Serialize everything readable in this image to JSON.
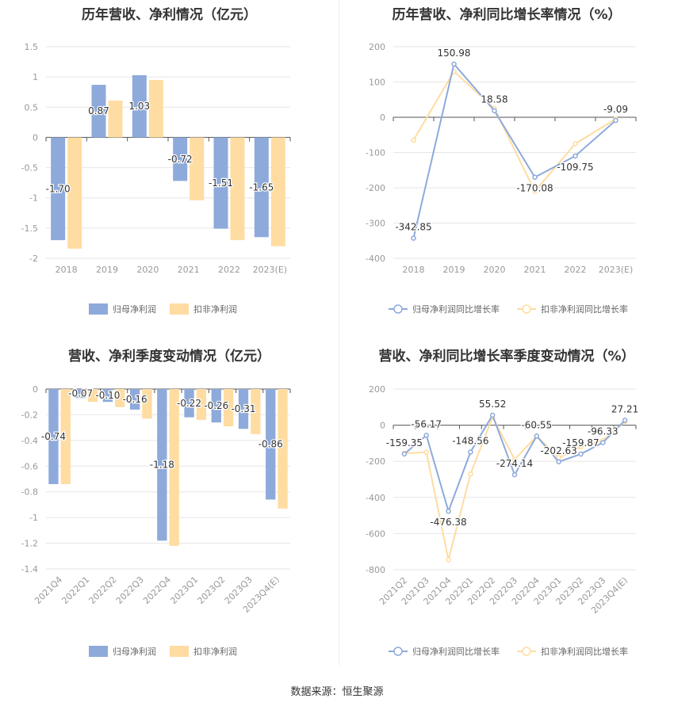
{
  "source": "数据来源：恒生聚源",
  "colors": {
    "series1": "#8eaadb",
    "series2": "#ffdca1",
    "grid": "#e6e6e6",
    "axis": "#888888",
    "text": "#999999"
  },
  "chart_data": [
    {
      "type": "bar",
      "title": "历年营收、净利情况（亿元）",
      "categories": [
        "2018",
        "2019",
        "2020",
        "2021",
        "2022",
        "2023(E)"
      ],
      "series": [
        {
          "name": "归母净利润",
          "values": [
            -1.7,
            0.87,
            1.03,
            -0.72,
            -1.51,
            -1.65
          ],
          "labels": [
            "-1.70",
            "0.87",
            "1.03",
            "-0.72",
            "-1.51",
            "-1.65"
          ]
        },
        {
          "name": "扣非净利润",
          "values": [
            -1.84,
            0.61,
            0.95,
            -1.04,
            -1.7,
            -1.8
          ]
        }
      ],
      "ylim": [
        -2,
        1.5
      ],
      "yticks": [
        1.5,
        1,
        0.5,
        0,
        -0.5,
        -1,
        -1.5,
        -2
      ],
      "ytick_labels": [
        "1.5",
        "1",
        "0.5",
        "0",
        "-0.5",
        "-1",
        "-1.5",
        "-2"
      ],
      "legend": "bottom-center"
    },
    {
      "type": "line",
      "title": "历年营收、净利同比增长率情况（%）",
      "categories": [
        "2018",
        "2019",
        "2020",
        "2021",
        "2022",
        "2023(E)"
      ],
      "series": [
        {
          "name": "归母净利润同比增长率",
          "values": [
            -342.85,
            150.98,
            18.58,
            -170.08,
            -109.75,
            -9.09
          ],
          "labels": [
            "-342.85",
            "150.98",
            "18.58",
            "-170.08",
            "-109.75",
            "-9.09"
          ]
        },
        {
          "name": "扣非净利润同比增长率",
          "values": [
            -65,
            130,
            25,
            -210,
            -75,
            -5
          ]
        }
      ],
      "ylim": [
        -400,
        200
      ],
      "yticks": [
        200,
        100,
        0,
        -100,
        -200,
        -300,
        -400
      ],
      "ytick_labels": [
        "200",
        "100",
        "0",
        "-100",
        "-200",
        "-300",
        "-400"
      ],
      "legend": "bottom-center"
    },
    {
      "type": "bar",
      "title": "营收、净利季度变动情况（亿元）",
      "categories": [
        "2021Q4",
        "2022Q1",
        "2022Q2",
        "2022Q3",
        "2022Q4",
        "2023Q1",
        "2023Q2",
        "2023Q3",
        "2023Q4(E)"
      ],
      "series": [
        {
          "name": "归母净利润",
          "values": [
            -0.74,
            -0.07,
            -0.1,
            -0.16,
            -1.18,
            -0.22,
            -0.26,
            -0.31,
            -0.86
          ],
          "labels": [
            "-0.74",
            "-0.07",
            "-0.10",
            "-0.16",
            "-1.18",
            "-0.22",
            "-0.26",
            "-0.31",
            "-0.86"
          ]
        },
        {
          "name": "扣非净利润",
          "values": [
            -0.74,
            -0.1,
            -0.14,
            -0.23,
            -1.22,
            -0.24,
            -0.29,
            -0.35,
            -0.93
          ]
        }
      ],
      "ylim": [
        -1.4,
        0
      ],
      "yticks": [
        0,
        -0.2,
        -0.4,
        -0.6,
        -0.8,
        -1,
        -1.2,
        -1.4
      ],
      "ytick_labels": [
        "0",
        "-0.2",
        "-0.4",
        "-0.6",
        "-0.8",
        "-1",
        "-1.2",
        "-1.4"
      ],
      "legend": "bottom-center"
    },
    {
      "type": "line",
      "title": "营收、净利同比增长率季度变动情况（%）",
      "categories": [
        "2021Q2",
        "2021Q3",
        "2021Q4",
        "2022Q1",
        "2022Q2",
        "2022Q3",
        "2022Q4",
        "2023Q1",
        "2023Q2",
        "2023Q3",
        "2023Q4(E)"
      ],
      "series": [
        {
          "name": "归母净利润同比增长率",
          "values": [
            -159.35,
            -56.17,
            -476.38,
            -148.56,
            55.52,
            -274.14,
            -60.55,
            -202.63,
            -159.87,
            -96.33,
            27.21
          ],
          "labels": [
            "-159.35",
            "-56.17",
            "-476.38",
            "-148.56",
            "55.52",
            "-274.14",
            "-60.55",
            "-202.63",
            "-159.87",
            "-96.33",
            "27.21"
          ]
        },
        {
          "name": "扣非净利润同比增长率",
          "values": [
            -155,
            -150,
            -745,
            -270,
            45,
            -190,
            -60,
            -180,
            -120,
            -85,
            20
          ]
        }
      ],
      "ylim": [
        -800,
        200
      ],
      "yticks": [
        200,
        0,
        -200,
        -400,
        -600,
        -800
      ],
      "ytick_labels": [
        "200",
        "0",
        "-200",
        "-400",
        "-600",
        "-800"
      ],
      "legend": "bottom-center"
    }
  ]
}
